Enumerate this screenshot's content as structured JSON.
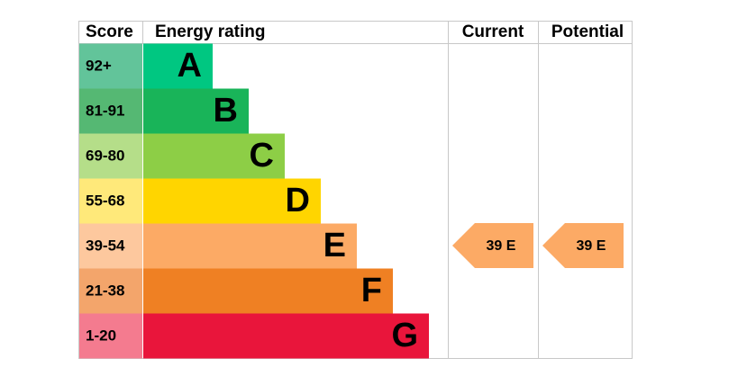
{
  "header": {
    "score": "Score",
    "rating": "Energy rating",
    "current": "Current",
    "potential": "Potential"
  },
  "bands": [
    {
      "score": "92+",
      "letter": "A",
      "score_color": "#62c49a",
      "bar_color": "#00c781"
    },
    {
      "score": "81-91",
      "letter": "B",
      "score_color": "#55b873",
      "bar_color": "#19b459"
    },
    {
      "score": "69-80",
      "letter": "C",
      "score_color": "#b5de89",
      "bar_color": "#8dce46"
    },
    {
      "score": "55-68",
      "letter": "D",
      "score_color": "#ffe97a",
      "bar_color": "#ffd500"
    },
    {
      "score": "39-54",
      "letter": "E",
      "score_color": "#fdc89e",
      "bar_color": "#fcaa65"
    },
    {
      "score": "21-38",
      "letter": "F",
      "score_color": "#f3a56b",
      "bar_color": "#ef8023"
    },
    {
      "score": "1-20",
      "letter": "G",
      "score_color": "#f47b8f",
      "bar_color": "#e9153b"
    }
  ],
  "current": {
    "label": "39 E",
    "color": "#fcaa65"
  },
  "potential": {
    "label": "39 E",
    "color": "#fcaa65"
  }
}
